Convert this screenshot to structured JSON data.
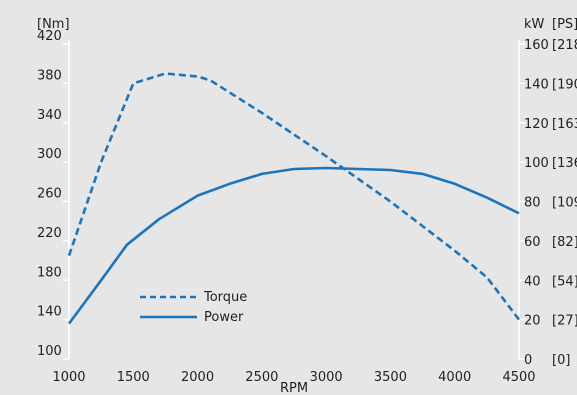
{
  "chart_data": {
    "type": "line",
    "title": "",
    "xlabel": "RPM",
    "x_ticks": [
      1000,
      1500,
      2000,
      2500,
      3000,
      3500,
      4000,
      4500
    ],
    "xlim": [
      1000,
      4500
    ],
    "left_axis": {
      "unit": "[Nm]",
      "ticks": [
        100,
        140,
        180,
        220,
        260,
        300,
        340,
        380,
        420
      ],
      "ylim": [
        100,
        420
      ]
    },
    "right_axis": {
      "unit_kw": "kW",
      "unit_ps": "[PS]",
      "kw_ticks": [
        0,
        20,
        40,
        60,
        80,
        100,
        120,
        140,
        160
      ],
      "ps_ticks": [
        "[0]",
        "[27]",
        "[54]",
        "[82]",
        "[109]",
        "[136]",
        "[163]",
        "[190]",
        "[218]"
      ],
      "ylim": [
        0,
        160
      ]
    },
    "series": [
      {
        "name": "Torque",
        "axis": "left",
        "style": "dashed",
        "x": [
          1000,
          1250,
          1500,
          1750,
          2000,
          2100,
          2500,
          3000,
          3500,
          4000,
          4250,
          4500
        ],
        "y": [
          205,
          300,
          380,
          390,
          387,
          383,
          350,
          306,
          260,
          210,
          183,
          140
        ]
      },
      {
        "name": "Power",
        "axis": "right",
        "style": "solid",
        "x": [
          1000,
          1250,
          1450,
          1700,
          2000,
          2250,
          2500,
          2750,
          3000,
          3250,
          3500,
          3750,
          4000,
          4250,
          4500
        ],
        "y": [
          18,
          40,
          58,
          71,
          83,
          89,
          94,
          96.5,
          97,
          96.5,
          96,
          94,
          89,
          82,
          74
        ]
      }
    ],
    "legend_position": "bottom-left",
    "grid": false,
    "line_color": "#1c75bc"
  }
}
